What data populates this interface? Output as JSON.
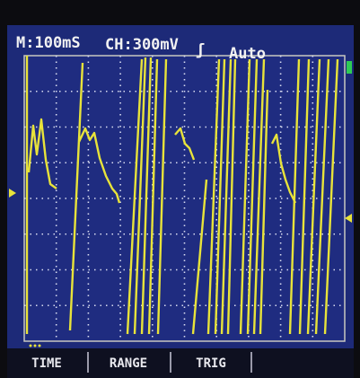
{
  "header": {
    "timebase": "M:100mS",
    "channel": "CH:300mV",
    "trigger_edge": "ʃ",
    "trigger_mode": "Auto"
  },
  "menu": {
    "items": [
      "TIME",
      "RANGE",
      "TRIG"
    ]
  }
}
